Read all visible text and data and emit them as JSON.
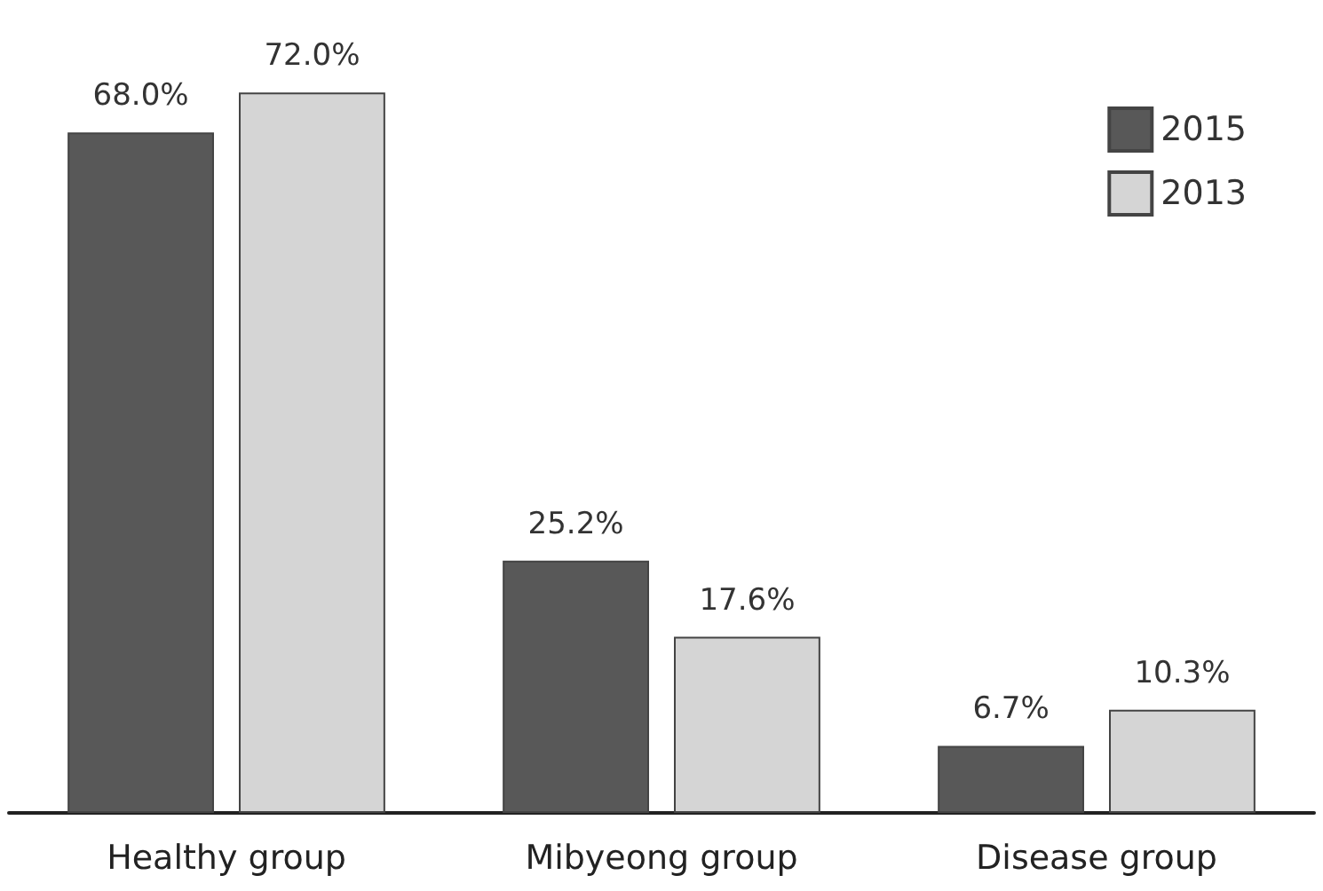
{
  "chart_data": {
    "type": "bar",
    "categories": [
      "Healthy group",
      "Mibyeong group",
      "Disease group"
    ],
    "series": [
      {
        "name": "2015",
        "color": "#585858",
        "values": [
          68.0,
          25.2,
          6.7
        ],
        "value_labels": [
          "68.0%",
          "25.2%",
          "6.7%"
        ]
      },
      {
        "name": "2013",
        "color": "#d5d5d5",
        "values": [
          72.0,
          17.6,
          10.3
        ],
        "value_labels": [
          "72.0%",
          "17.6%",
          "10.3%"
        ]
      }
    ],
    "legend": "top right"
  }
}
